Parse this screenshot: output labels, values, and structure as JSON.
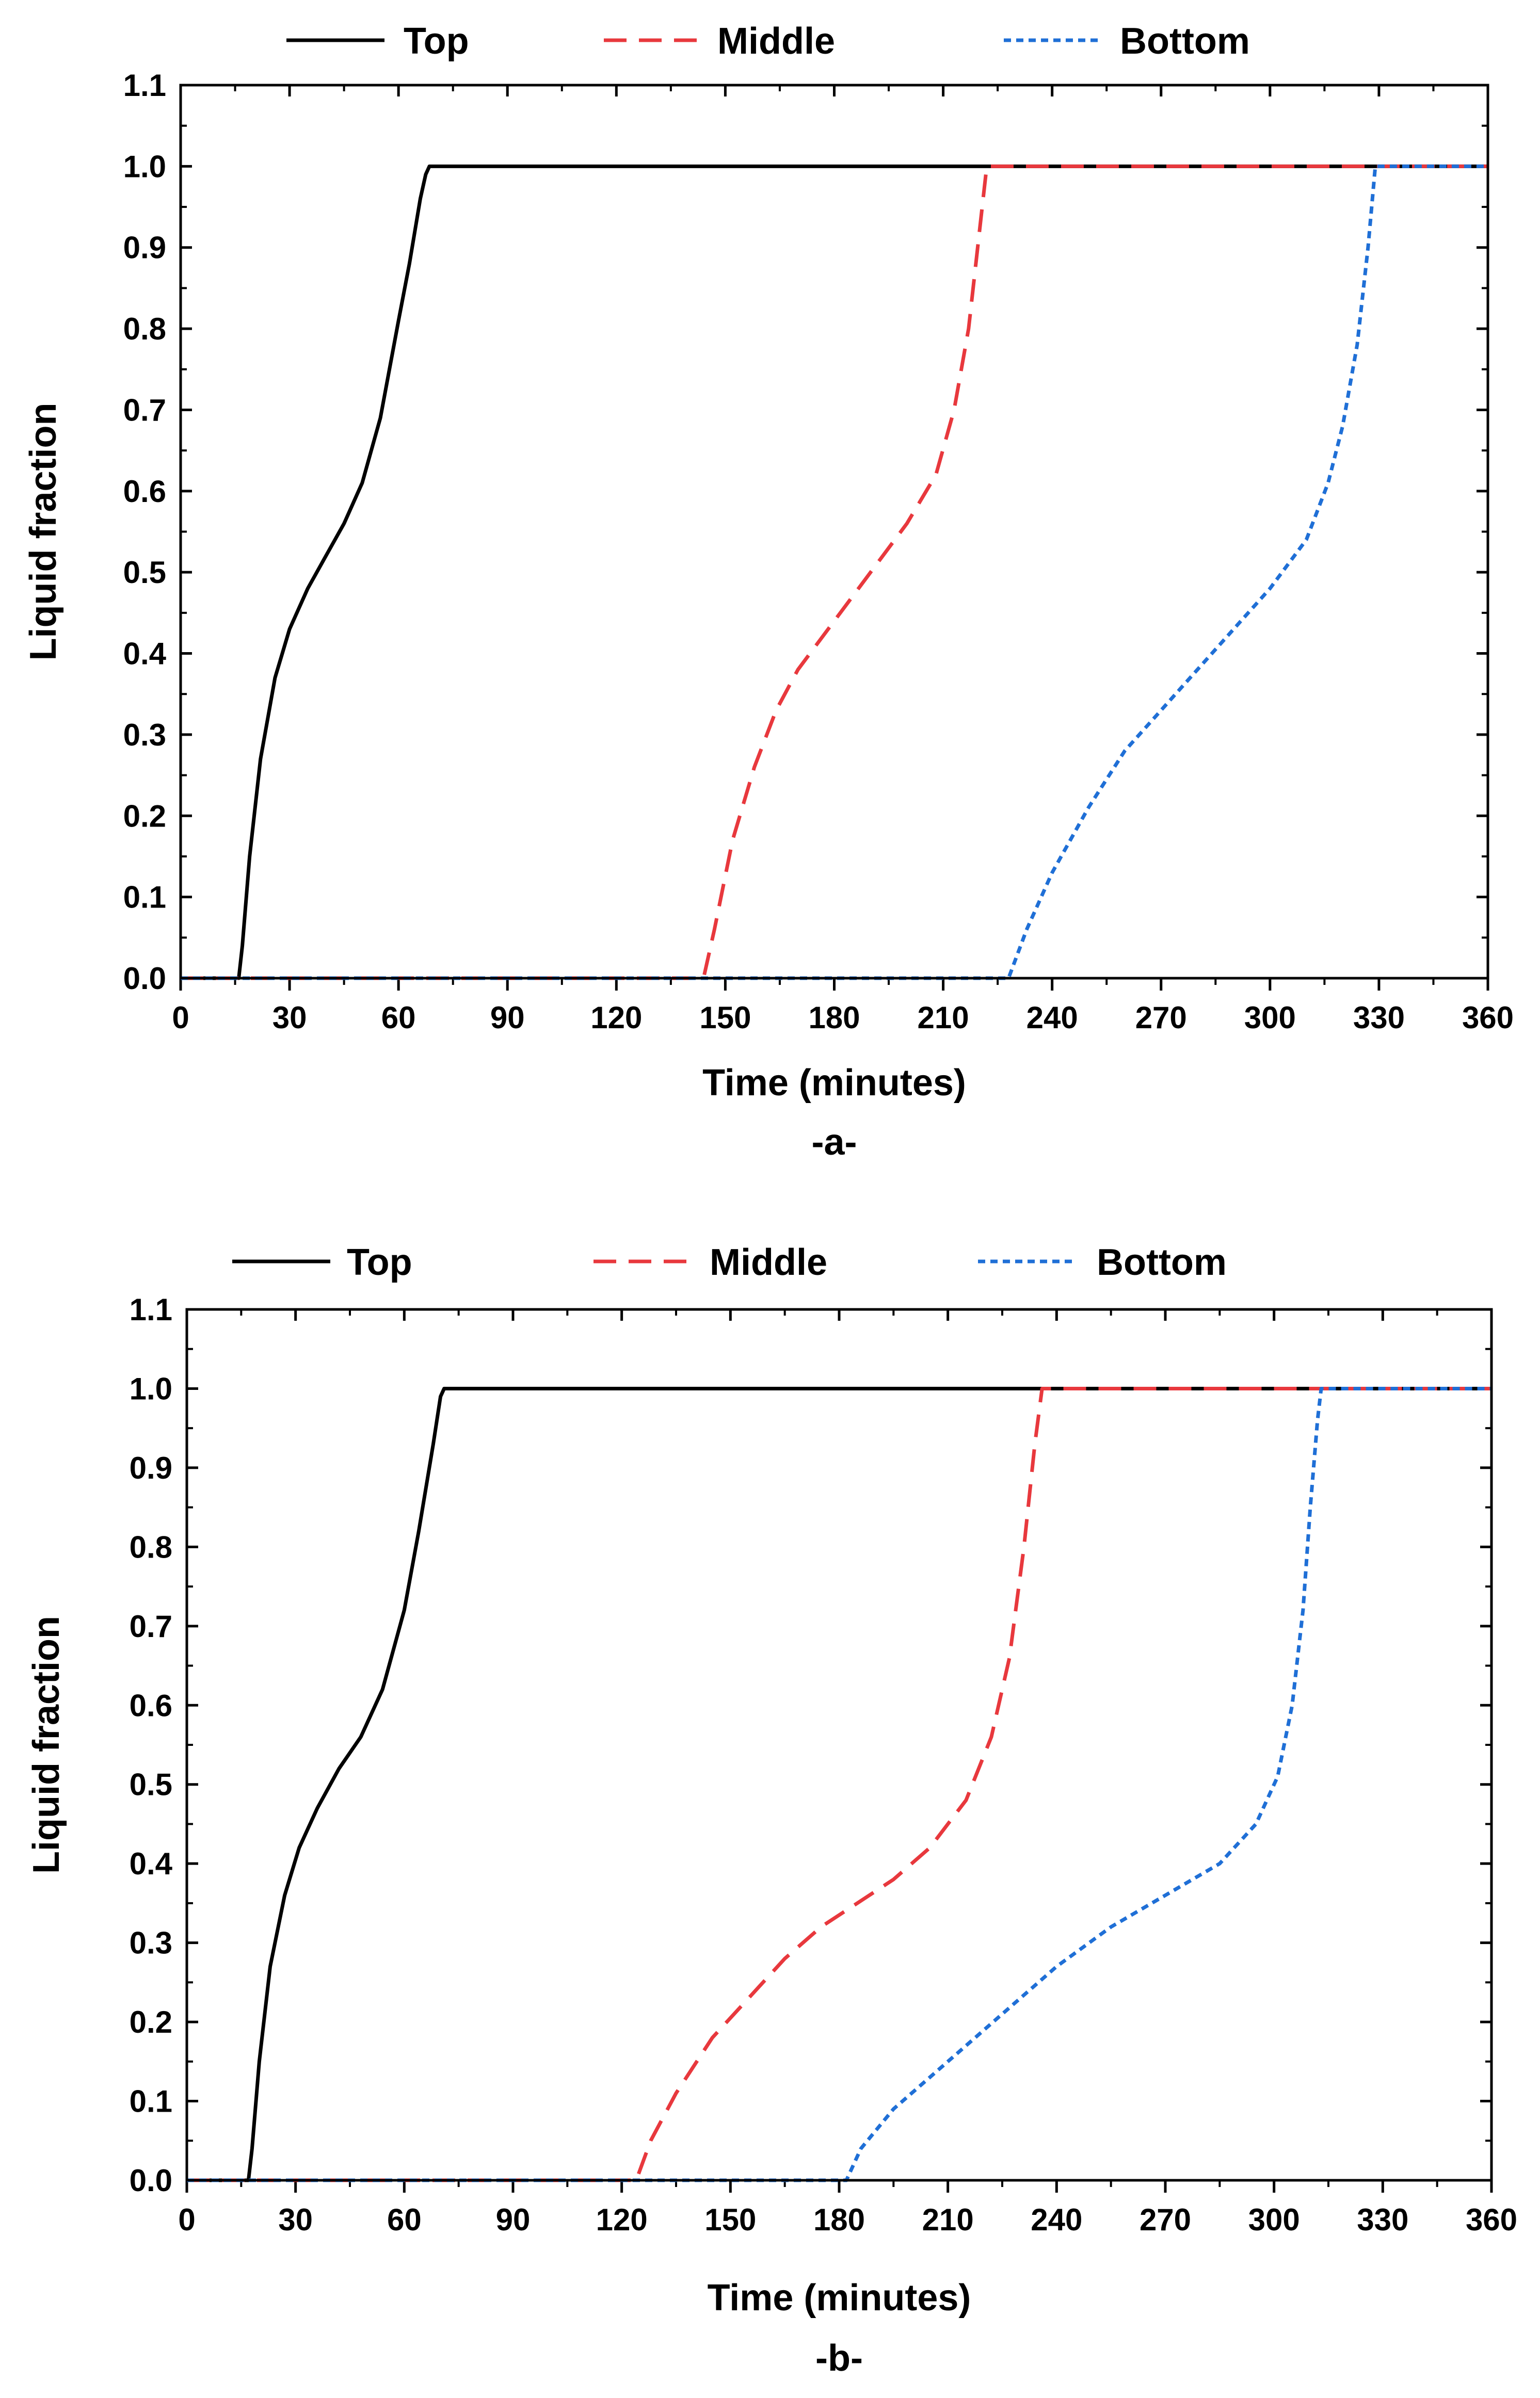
{
  "chart_data": [
    {
      "type": "line",
      "xlabel": "Time (minutes)",
      "ylabel": "Liquid fraction",
      "caption": "-a-",
      "xlim": [
        0,
        360
      ],
      "ylim": [
        0,
        1.1
      ],
      "x_ticks": [
        "0",
        "30",
        "60",
        "90",
        "120",
        "150",
        "180",
        "210",
        "240",
        "270",
        "300",
        "330",
        "360"
      ],
      "y_ticks": [
        "0.0",
        "0.1",
        "0.2",
        "0.3",
        "0.4",
        "0.5",
        "0.6",
        "0.7",
        "0.8",
        "0.9",
        "1.0",
        "1.1"
      ],
      "legend_position": "top",
      "series": [
        {
          "name": "Top",
          "color": "#000000",
          "style": "solid",
          "x": [
            0,
            16,
            17,
            19,
            22,
            26,
            30,
            35,
            40,
            45,
            50,
            55,
            60,
            63,
            66,
            67.5,
            68.5,
            70,
            360
          ],
          "y": [
            0,
            0,
            0.04,
            0.15,
            0.27,
            0.37,
            0.43,
            0.48,
            0.52,
            0.56,
            0.61,
            0.69,
            0.81,
            0.88,
            0.96,
            0.99,
            1.0,
            1.0,
            1.0
          ]
        },
        {
          "name": "Middle",
          "color": "#e8383d",
          "style": "dashed",
          "x": [
            0,
            144,
            147,
            152,
            158,
            164,
            170,
            180,
            190,
            200,
            208,
            213,
            217,
            220,
            222,
            360
          ],
          "y": [
            0,
            0,
            0.06,
            0.17,
            0.26,
            0.33,
            0.38,
            0.44,
            0.5,
            0.56,
            0.62,
            0.7,
            0.8,
            0.92,
            1.0,
            1.0
          ]
        },
        {
          "name": "Bottom",
          "color": "#1f6fd6",
          "style": "dotted",
          "x": [
            0,
            228,
            233,
            240,
            250,
            260,
            270,
            280,
            290,
            300,
            310,
            316,
            320,
            324,
            327,
            329,
            360
          ],
          "y": [
            0,
            0,
            0.06,
            0.13,
            0.21,
            0.28,
            0.33,
            0.38,
            0.43,
            0.48,
            0.54,
            0.61,
            0.68,
            0.78,
            0.9,
            1.0,
            1.0
          ]
        }
      ]
    },
    {
      "type": "line",
      "xlabel": "Time (minutes)",
      "ylabel": "Liquid fraction",
      "caption": "-b-",
      "xlim": [
        0,
        360
      ],
      "ylim": [
        0,
        1.1
      ],
      "x_ticks": [
        "0",
        "30",
        "60",
        "90",
        "120",
        "150",
        "180",
        "210",
        "240",
        "270",
        "300",
        "330",
        "360"
      ],
      "y_ticks": [
        "0.0",
        "0.1",
        "0.2",
        "0.3",
        "0.4",
        "0.5",
        "0.6",
        "0.7",
        "0.8",
        "0.9",
        "1.0",
        "1.1"
      ],
      "legend_position": "top",
      "series": [
        {
          "name": "Top",
          "color": "#000000",
          "style": "solid",
          "x": [
            0,
            17,
            18,
            20,
            23,
            27,
            31,
            36,
            42,
            48,
            54,
            60,
            64,
            68,
            70,
            71,
            72.5,
            360
          ],
          "y": [
            0,
            0,
            0.04,
            0.15,
            0.27,
            0.36,
            0.42,
            0.47,
            0.52,
            0.56,
            0.62,
            0.72,
            0.82,
            0.93,
            0.99,
            1.0,
            1.0,
            1.0
          ]
        },
        {
          "name": "Middle",
          "color": "#e8383d",
          "style": "dashed",
          "x": [
            0,
            124,
            128,
            135,
            145,
            155,
            165,
            175,
            185,
            195,
            205,
            215,
            222,
            227,
            231,
            234,
            236,
            360
          ],
          "y": [
            0,
            0,
            0.05,
            0.11,
            0.18,
            0.23,
            0.28,
            0.32,
            0.35,
            0.38,
            0.42,
            0.48,
            0.56,
            0.66,
            0.8,
            0.93,
            1.0,
            1.0
          ]
        },
        {
          "name": "Bottom",
          "color": "#1f6fd6",
          "style": "dotted",
          "x": [
            0,
            182,
            186,
            195,
            210,
            225,
            240,
            255,
            270,
            285,
            295,
            301,
            305,
            308,
            310,
            312,
            313,
            360
          ],
          "y": [
            0,
            0,
            0.04,
            0.09,
            0.15,
            0.21,
            0.27,
            0.32,
            0.36,
            0.4,
            0.45,
            0.51,
            0.6,
            0.72,
            0.85,
            0.96,
            1.0,
            1.0
          ]
        }
      ]
    }
  ]
}
